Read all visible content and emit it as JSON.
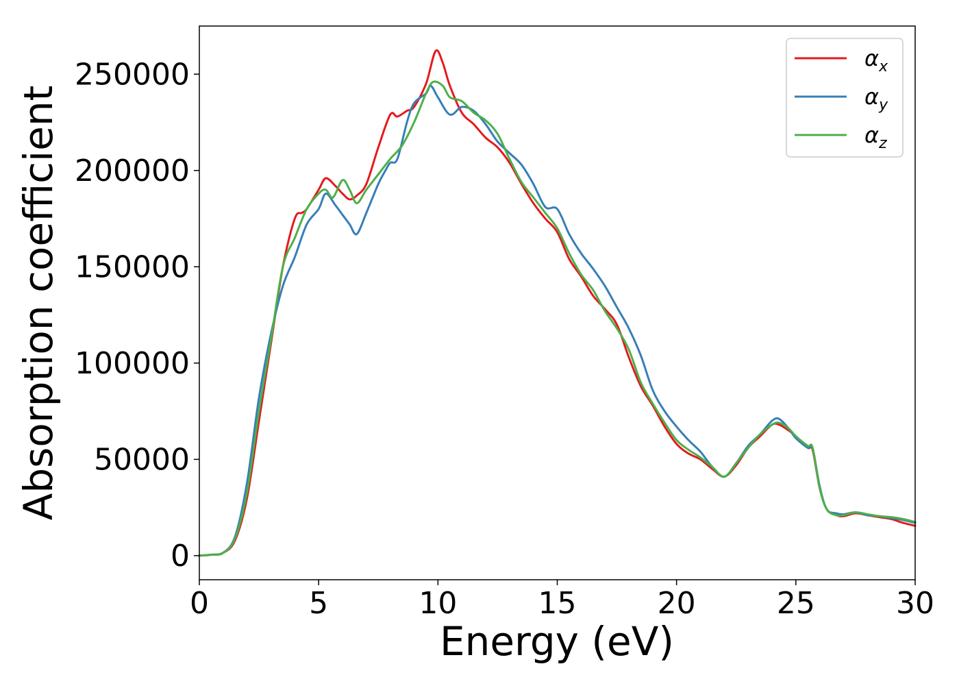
{
  "chart_data": {
    "type": "line",
    "title": "",
    "xlabel": "Energy (eV)",
    "ylabel": "Absorption coefficient",
    "xlim": [
      0,
      30
    ],
    "ylim": [
      -12500,
      275000
    ],
    "xticks": [
      0,
      5,
      10,
      15,
      20,
      25,
      30
    ],
    "yticks": [
      0,
      50000,
      100000,
      150000,
      200000,
      250000
    ],
    "xtick_labels": [
      "0",
      "5",
      "10",
      "15",
      "20",
      "25",
      "30"
    ],
    "ytick_labels": [
      "0",
      "50000",
      "100000",
      "150000",
      "200000",
      "250000"
    ],
    "grid": false,
    "legend_position": "top-right",
    "series": [
      {
        "name": "αx",
        "symbol": "α",
        "subscript": "x",
        "color": "#e41a1c",
        "x": [
          0,
          0.5,
          1.0,
          1.5,
          2.0,
          2.5,
          3.0,
          3.5,
          4.0,
          4.3,
          4.5,
          5.0,
          5.3,
          5.7,
          6.0,
          6.3,
          6.6,
          7.0,
          7.5,
          8.0,
          8.3,
          8.7,
          9.0,
          9.5,
          9.9,
          10.2,
          10.5,
          11.0,
          11.5,
          12.0,
          12.5,
          13.0,
          13.5,
          14.0,
          14.5,
          15.0,
          15.5,
          16.0,
          16.5,
          17.0,
          17.5,
          18.0,
          18.5,
          19.0,
          19.5,
          20.0,
          20.5,
          21.0,
          21.5,
          22.0,
          22.5,
          23.0,
          23.5,
          24.0,
          24.3,
          24.7,
          25.0,
          25.5,
          25.7,
          26.0,
          26.3,
          26.7,
          27.0,
          27.5,
          28.0,
          28.5,
          29.0,
          29.5,
          30.0
        ],
        "y": [
          0,
          500,
          1500,
          8000,
          30000,
          70000,
          110000,
          150000,
          175000,
          178000,
          180000,
          190000,
          196000,
          192000,
          188000,
          185000,
          187000,
          193000,
          212000,
          229000,
          228000,
          231000,
          233000,
          245000,
          262000,
          256000,
          244000,
          230000,
          224000,
          217000,
          212000,
          204000,
          193000,
          183000,
          175000,
          168000,
          154000,
          145000,
          135000,
          128000,
          120000,
          103000,
          88000,
          78000,
          67000,
          58000,
          53000,
          50000,
          45000,
          41000,
          47000,
          56000,
          62000,
          68000,
          68000,
          65000,
          62000,
          56000,
          55000,
          35000,
          24000,
          21000,
          20500,
          22000,
          21000,
          20000,
          19000,
          17000,
          15500
        ]
      },
      {
        "name": "αy",
        "symbol": "α",
        "subscript": "y",
        "color": "#377eb8",
        "x": [
          0,
          0.5,
          1.0,
          1.5,
          2.0,
          2.5,
          3.0,
          3.5,
          4.0,
          4.5,
          5.0,
          5.3,
          5.7,
          6.0,
          6.3,
          6.6,
          7.0,
          7.5,
          7.8,
          8.0,
          8.3,
          8.7,
          9.0,
          9.5,
          9.7,
          10.0,
          10.5,
          11.0,
          11.5,
          12.0,
          12.5,
          13.0,
          13.5,
          14.0,
          14.5,
          15.0,
          15.5,
          16.0,
          16.5,
          17.0,
          17.5,
          18.0,
          18.5,
          19.0,
          19.5,
          20.0,
          20.5,
          21.0,
          21.5,
          22.0,
          22.5,
          23.0,
          23.5,
          24.0,
          24.3,
          24.7,
          25.0,
          25.5,
          25.7,
          26.0,
          26.3,
          26.7,
          27.0,
          27.5,
          28.0,
          28.5,
          29.0,
          29.5,
          30.0
        ],
        "y": [
          0,
          500,
          1500,
          10000,
          38000,
          82000,
          115000,
          140000,
          155000,
          172000,
          180000,
          188000,
          182000,
          177000,
          172000,
          167000,
          178000,
          193000,
          200000,
          204000,
          206000,
          225000,
          235000,
          240000,
          244000,
          238000,
          229000,
          233000,
          231000,
          224000,
          215000,
          209000,
          203000,
          193000,
          181000,
          180000,
          167000,
          157000,
          149000,
          140000,
          129000,
          118000,
          104000,
          86000,
          75000,
          67000,
          60000,
          54000,
          46000,
          41000,
          48000,
          57000,
          63000,
          70000,
          71000,
          66000,
          61000,
          56000,
          56000,
          36000,
          24000,
          22000,
          21500,
          22500,
          21000,
          20500,
          19500,
          18500,
          17000
        ]
      },
      {
        "name": "αz",
        "symbol": "α",
        "subscript": "z",
        "color": "#4daf4a",
        "x": [
          0,
          0.5,
          1.0,
          1.5,
          2.0,
          2.5,
          3.0,
          3.5,
          4.0,
          4.5,
          5.0,
          5.3,
          5.6,
          6.0,
          6.3,
          6.6,
          7.0,
          7.5,
          8.0,
          8.5,
          9.0,
          9.5,
          9.8,
          10.2,
          10.5,
          11.0,
          11.5,
          12.0,
          12.5,
          13.0,
          13.5,
          14.0,
          14.5,
          15.0,
          15.5,
          16.0,
          16.5,
          17.0,
          17.5,
          18.0,
          18.5,
          19.0,
          19.5,
          20.0,
          20.5,
          21.0,
          21.5,
          22.0,
          22.5,
          23.0,
          23.5,
          24.0,
          24.3,
          24.7,
          25.0,
          25.5,
          25.7,
          26.0,
          26.3,
          26.7,
          27.0,
          27.5,
          28.0,
          28.5,
          29.0,
          29.5,
          30.0
        ],
        "y": [
          0,
          500,
          1500,
          9000,
          33000,
          75000,
          112000,
          150000,
          165000,
          180000,
          188000,
          190000,
          186000,
          195000,
          190000,
          183000,
          190000,
          198000,
          206000,
          213000,
          225000,
          240000,
          246000,
          244000,
          238000,
          236000,
          230000,
          226000,
          219000,
          206000,
          194000,
          186000,
          178000,
          170000,
          157000,
          146000,
          138000,
          127000,
          118000,
          107000,
          90000,
          79000,
          69000,
          60000,
          55000,
          51000,
          46000,
          41000,
          48000,
          56000,
          63000,
          68000,
          69000,
          66000,
          62000,
          57000,
          56000,
          35000,
          24000,
          21000,
          21000,
          22500,
          21500,
          20500,
          20000,
          19000,
          17500
        ]
      }
    ]
  }
}
